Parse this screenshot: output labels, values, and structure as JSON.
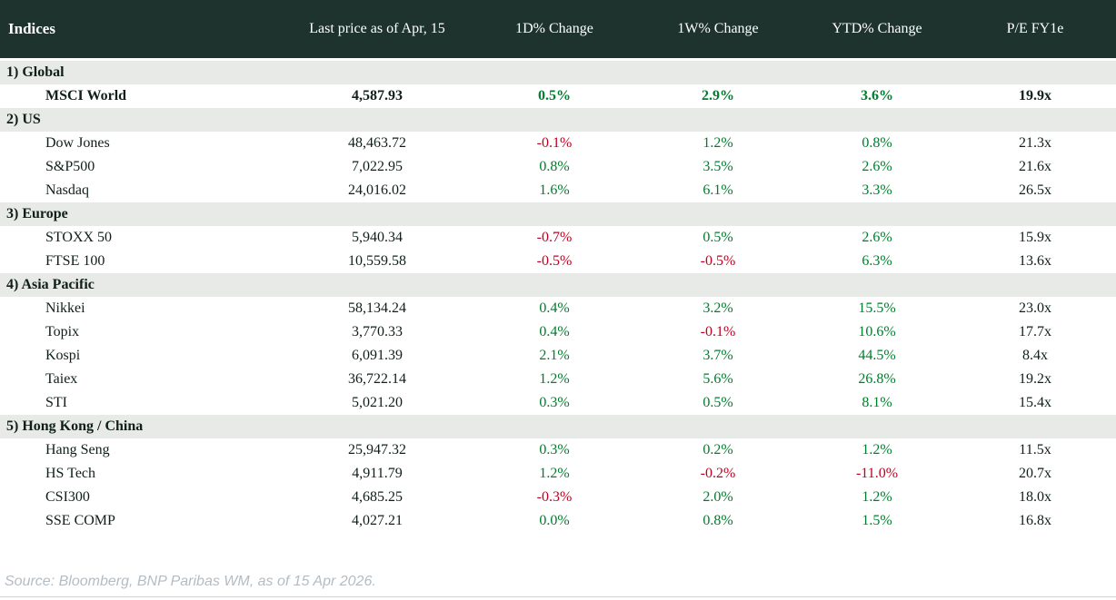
{
  "chart_data": {
    "type": "table",
    "title": "Indices",
    "columns": [
      "Indices",
      "Last price as of Apr, 15",
      "1D% Change",
      "1W% Change",
      "YTD% Change",
      "P/E FY1e"
    ],
    "sections": [
      {
        "label": "1) Global",
        "rows": [
          {
            "name": "MSCI World",
            "last_price": "4,587.93",
            "chg_1d": "0.5%",
            "chg_1w": "2.9%",
            "chg_ytd": "3.6%",
            "pe_fy1e": "19.9x",
            "emphasis": true
          }
        ]
      },
      {
        "label": "2) US",
        "rows": [
          {
            "name": "Dow Jones",
            "last_price": "48,463.72",
            "chg_1d": "-0.1%",
            "chg_1w": "1.2%",
            "chg_ytd": "0.8%",
            "pe_fy1e": "21.3x"
          },
          {
            "name": "S&P500",
            "last_price": "7,022.95",
            "chg_1d": "0.8%",
            "chg_1w": "3.5%",
            "chg_ytd": "2.6%",
            "pe_fy1e": "21.6x"
          },
          {
            "name": "Nasdaq",
            "last_price": "24,016.02",
            "chg_1d": "1.6%",
            "chg_1w": "6.1%",
            "chg_ytd": "3.3%",
            "pe_fy1e": "26.5x"
          }
        ]
      },
      {
        "label": "3) Europe",
        "rows": [
          {
            "name": "STOXX 50",
            "last_price": "5,940.34",
            "chg_1d": "-0.7%",
            "chg_1w": "0.5%",
            "chg_ytd": "2.6%",
            "pe_fy1e": "15.9x"
          },
          {
            "name": "FTSE 100",
            "last_price": "10,559.58",
            "chg_1d": "-0.5%",
            "chg_1w": "-0.5%",
            "chg_ytd": "6.3%",
            "pe_fy1e": "13.6x"
          }
        ]
      },
      {
        "label": "4) Asia Pacific",
        "rows": [
          {
            "name": "Nikkei",
            "last_price": "58,134.24",
            "chg_1d": "0.4%",
            "chg_1w": "3.2%",
            "chg_ytd": "15.5%",
            "pe_fy1e": "23.0x"
          },
          {
            "name": "Topix",
            "last_price": "3,770.33",
            "chg_1d": "0.4%",
            "chg_1w": "-0.1%",
            "chg_ytd": "10.6%",
            "pe_fy1e": "17.7x"
          },
          {
            "name": "Kospi",
            "last_price": "6,091.39",
            "chg_1d": "2.1%",
            "chg_1w": "3.7%",
            "chg_ytd": "44.5%",
            "pe_fy1e": "8.4x"
          },
          {
            "name": "Taiex",
            "last_price": "36,722.14",
            "chg_1d": "1.2%",
            "chg_1w": "5.6%",
            "chg_ytd": "26.8%",
            "pe_fy1e": "19.2x"
          },
          {
            "name": "STI",
            "last_price": "5,021.20",
            "chg_1d": "0.3%",
            "chg_1w": "0.5%",
            "chg_ytd": "8.1%",
            "pe_fy1e": "15.4x"
          }
        ]
      },
      {
        "label": "5) Hong Kong / China",
        "rows": [
          {
            "name": "Hang Seng",
            "last_price": "25,947.32",
            "chg_1d": "0.3%",
            "chg_1w": "0.2%",
            "chg_ytd": "1.2%",
            "pe_fy1e": "11.5x"
          },
          {
            "name": "HS Tech",
            "last_price": "4,911.79",
            "chg_1d": "1.2%",
            "chg_1w": "-0.2%",
            "chg_ytd": "-11.0%",
            "pe_fy1e": "20.7x"
          },
          {
            "name": "CSI300",
            "last_price": "4,685.25",
            "chg_1d": "-0.3%",
            "chg_1w": "2.0%",
            "chg_ytd": "1.2%",
            "pe_fy1e": "18.0x"
          },
          {
            "name": "SSE COMP",
            "last_price": "4,027.21",
            "chg_1d": "0.0%",
            "chg_1w": "0.8%",
            "chg_ytd": "1.5%",
            "pe_fy1e": "16.8x"
          }
        ]
      }
    ]
  },
  "footer": {
    "source": "Source: Bloomberg, BNP Paribas WM, as of 15 Apr 2026."
  },
  "colors": {
    "header_bg": "#1e332d",
    "section_bg": "#e7eae6",
    "positive": "#007d2d",
    "negative": "#c00020",
    "text": "#101f1a",
    "source_text": "#b4bcc3"
  }
}
